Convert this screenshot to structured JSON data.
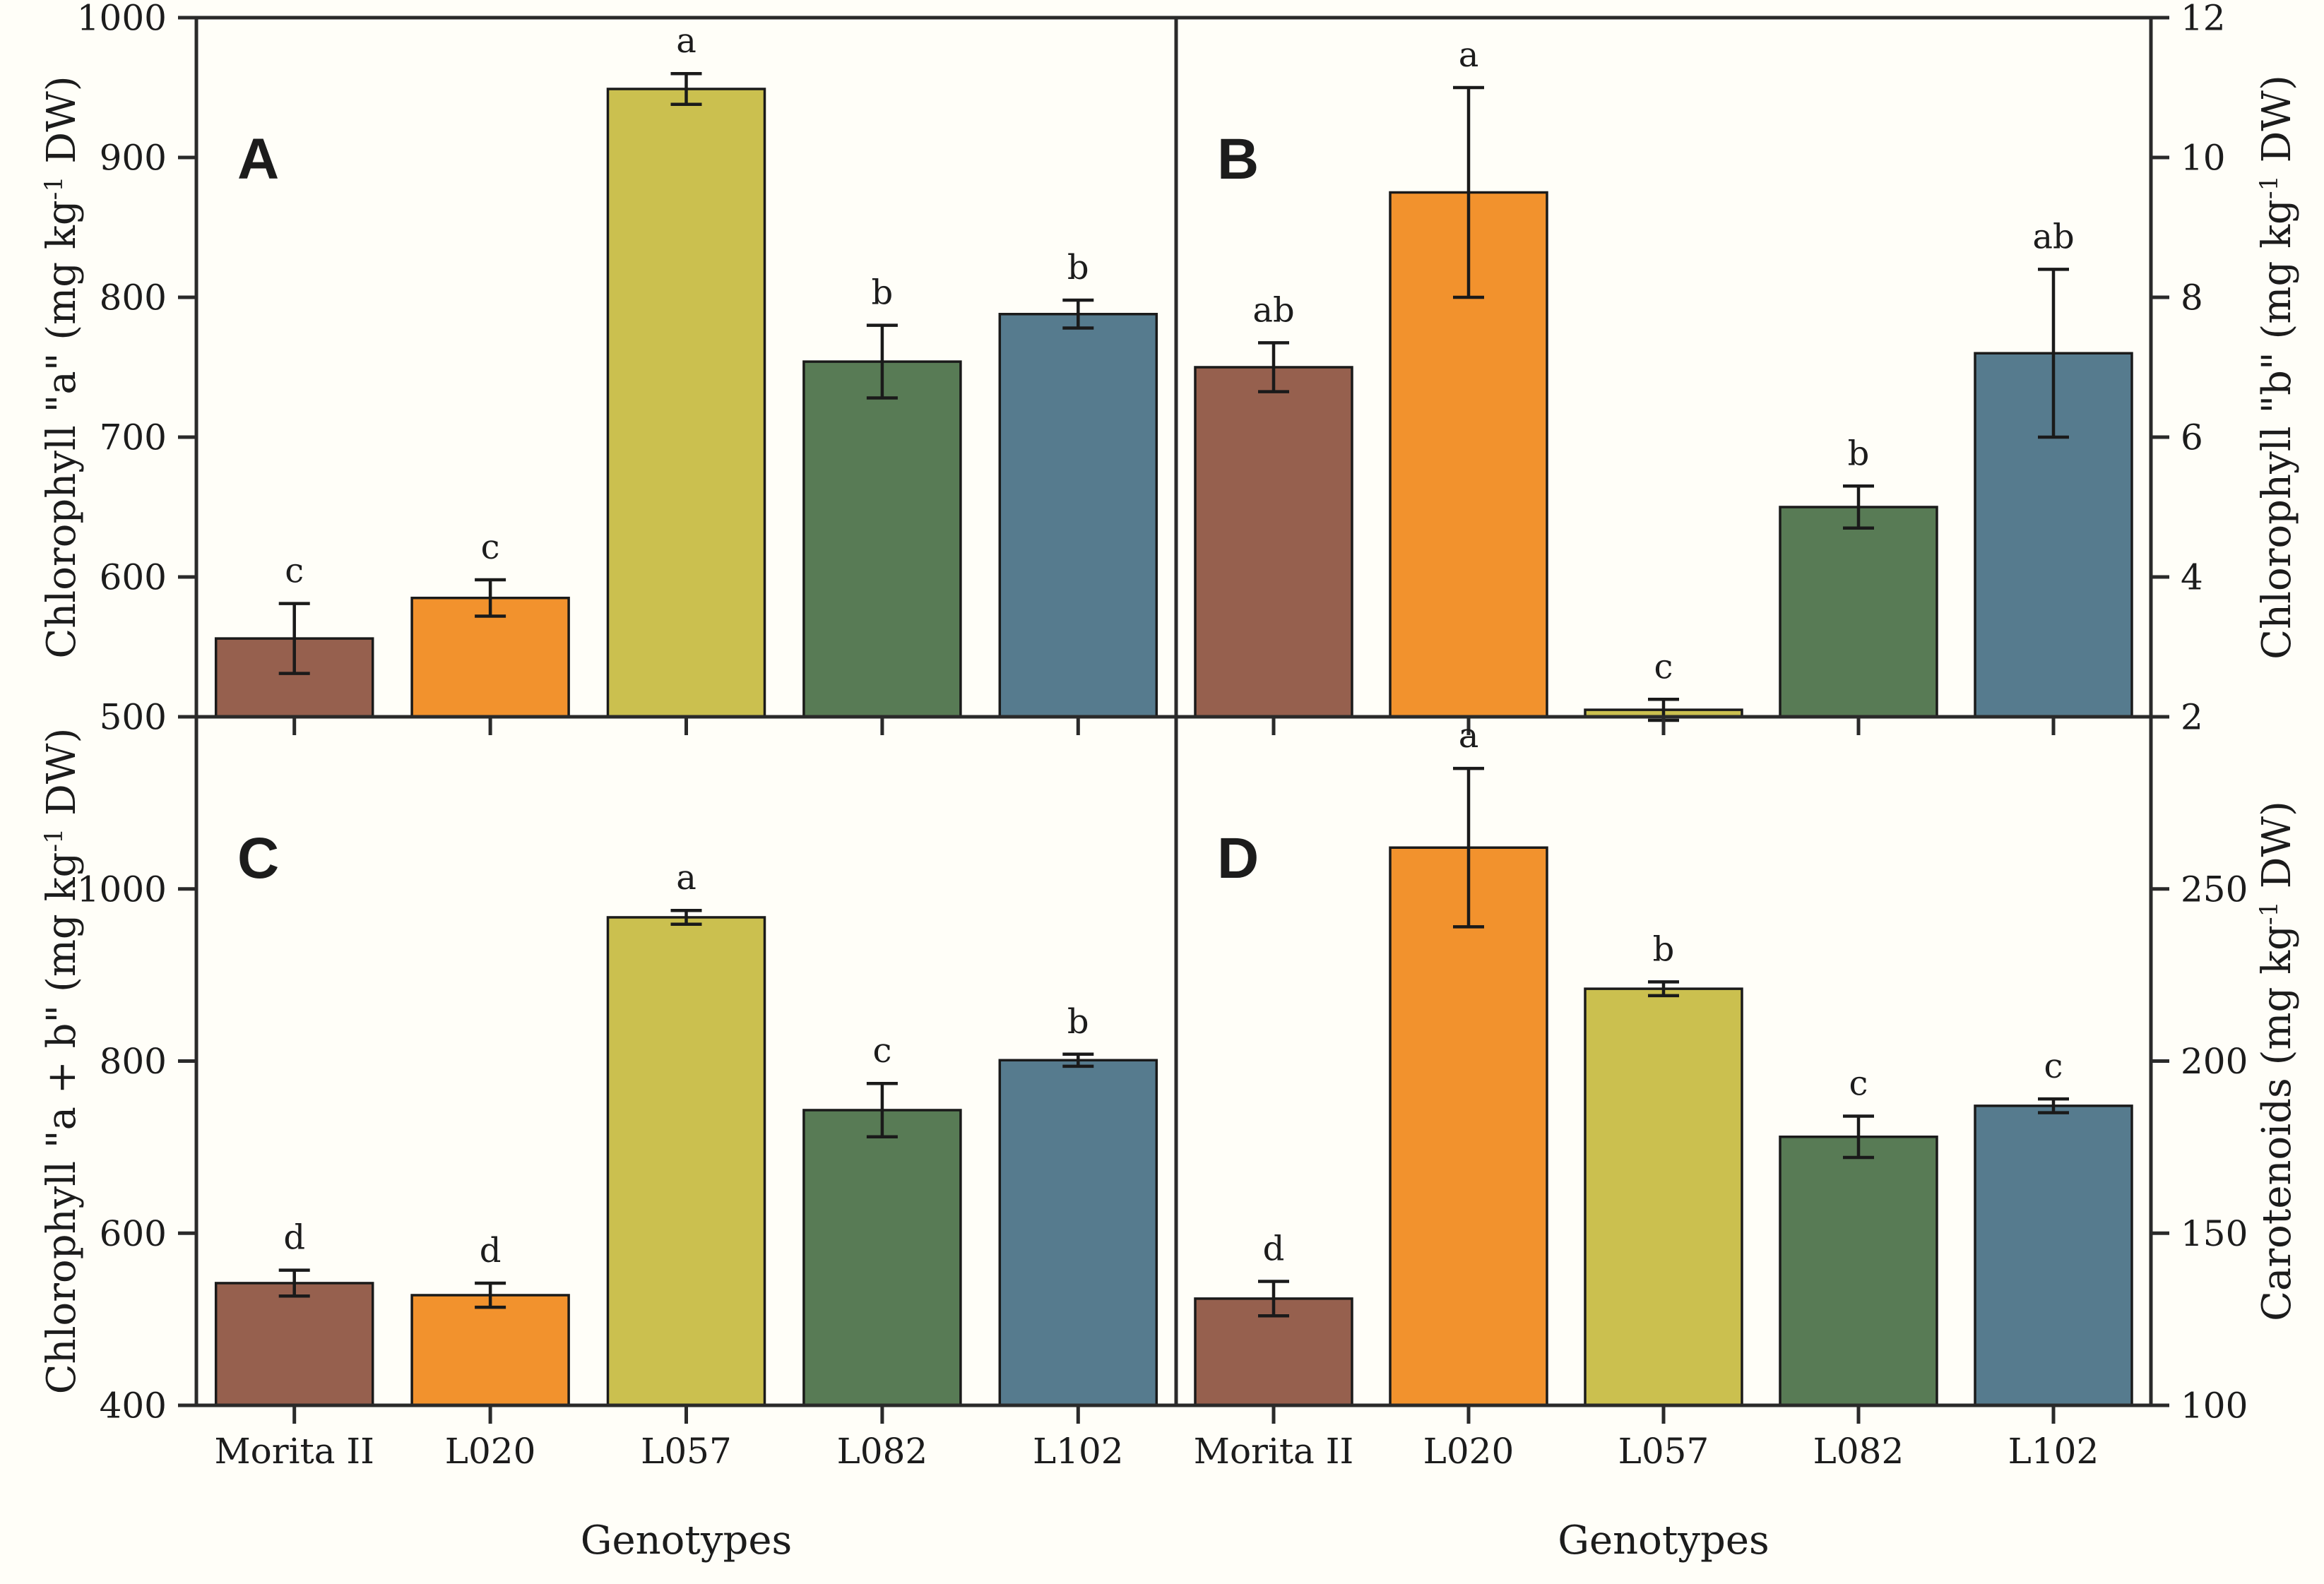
{
  "background_color": "#fffef8",
  "text_color": "#1c1c1c",
  "axis_color": "#2a2a2a",
  "bar_border_color": "#1a1a1a",
  "error_bar_color": "#1a1a1a",
  "bar_colors": [
    "#96604E",
    "#F2922D",
    "#CBC04F",
    "#587B55",
    "#567B8E"
  ],
  "categories": [
    "Morita II",
    "L020",
    "L057",
    "L082",
    "L102"
  ],
  "xlabel": "Genotypes",
  "chart_data": [
    {
      "type": "bar",
      "panel": "A",
      "ylabel": "Chlorophyll \"a\" (mg kg⁻¹ DW)",
      "axis_side": "left",
      "ylim": [
        500,
        1000
      ],
      "yticks": [
        500,
        600,
        700,
        800,
        900,
        1000
      ],
      "categories": [
        "Morita II",
        "L020",
        "L057",
        "L082",
        "L102"
      ],
      "xlabel": "Genotypes",
      "values": [
        556,
        585,
        949,
        754,
        788
      ],
      "errors": [
        25,
        13,
        11,
        26,
        10
      ],
      "sig_letters": [
        "c",
        "c",
        "a",
        "b",
        "b"
      ],
      "legend": "none",
      "grid": false
    },
    {
      "type": "bar",
      "panel": "B",
      "ylabel": "Chlorophyll \"b\" (mg kg⁻¹ DW)",
      "axis_side": "right",
      "ylim": [
        2,
        12
      ],
      "yticks": [
        2,
        4,
        6,
        8,
        10,
        12
      ],
      "categories": [
        "Morita II",
        "L020",
        "L057",
        "L082",
        "L102"
      ],
      "xlabel": "Genotypes",
      "values": [
        7.0,
        9.5,
        2.1,
        5.0,
        7.2
      ],
      "errors": [
        0.35,
        1.5,
        0.15,
        0.3,
        1.2
      ],
      "sig_letters": [
        "ab",
        "a",
        "c",
        "b",
        "ab"
      ],
      "legend": "none",
      "grid": false
    },
    {
      "type": "bar",
      "panel": "C",
      "ylabel": "Chlorophyll \"a + b\" (mg kg⁻¹ DW)",
      "axis_side": "left",
      "ylim": [
        400,
        1200
      ],
      "yticks": [
        400,
        600,
        800,
        1000
      ],
      "categories": [
        "Morita II",
        "L020",
        "L057",
        "L082",
        "L102"
      ],
      "xlabel": "Genotypes",
      "values": [
        542,
        528,
        967,
        743,
        801
      ],
      "errors": [
        15,
        14,
        8,
        31,
        7
      ],
      "sig_letters": [
        "d",
        "d",
        "a",
        "c",
        "b"
      ],
      "legend": "none",
      "grid": false
    },
    {
      "type": "bar",
      "panel": "D",
      "ylabel": "Carotenoids (mg kg⁻¹ DW)",
      "axis_side": "right",
      "ylim": [
        100,
        300
      ],
      "yticks": [
        100,
        150,
        200,
        250
      ],
      "categories": [
        "Morita II",
        "L020",
        "L057",
        "L082",
        "L102"
      ],
      "xlabel": "Genotypes",
      "values": [
        131,
        262,
        221,
        178,
        187
      ],
      "errors": [
        5,
        23,
        2,
        6,
        2
      ],
      "sig_letters": [
        "d",
        "a",
        "b",
        "c",
        "c"
      ],
      "legend": "none",
      "grid": false
    }
  ]
}
